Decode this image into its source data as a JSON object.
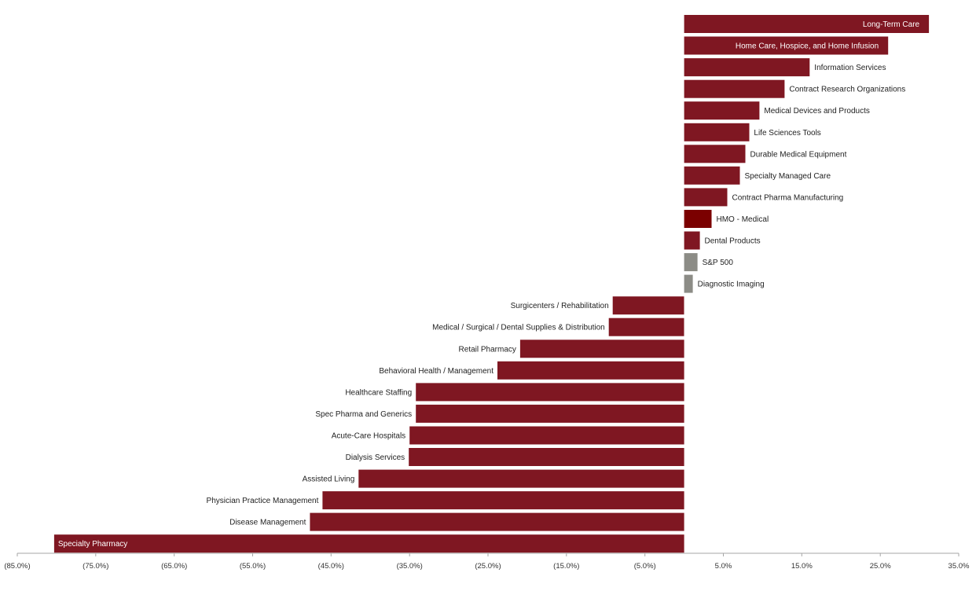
{
  "chart_data": {
    "type": "bar",
    "orientation": "horizontal",
    "xlim": [
      -85,
      35
    ],
    "x_ticks": [
      -85,
      -75,
      -65,
      -55,
      -45,
      -35,
      -25,
      -15,
      -5,
      5,
      15,
      25,
      35
    ],
    "x_tick_labels": [
      "(85.0%)",
      "(75.0%)",
      "(65.0%)",
      "(55.0%)",
      "(45.0%)",
      "(35.0%)",
      "(25.0%)",
      "(15.0%)",
      "(5.0%)",
      "5.0%",
      "15.0%",
      "25.0%",
      "35.0%"
    ],
    "grid": false,
    "legend": "none",
    "colors": {
      "default": "#7f1722",
      "highlight": "#7b0000",
      "benchmark": "#8c8c86"
    },
    "bars": [
      {
        "label": "Long-Term Care",
        "value": 31.2,
        "color": "default",
        "label_inside": true
      },
      {
        "label": "Home Care, Hospice, and Home Infusion",
        "value": 26.0,
        "color": "default",
        "label_inside": true
      },
      {
        "label": "Information Services",
        "value": 16.0,
        "color": "default"
      },
      {
        "label": "Contract Research Organizations",
        "value": 12.8,
        "color": "default"
      },
      {
        "label": "Medical Devices and Products",
        "value": 9.6,
        "color": "default"
      },
      {
        "label": "Life Sciences Tools",
        "value": 8.3,
        "color": "default"
      },
      {
        "label": "Durable Medical Equipment",
        "value": 7.8,
        "color": "default"
      },
      {
        "label": "Specialty Managed Care",
        "value": 7.1,
        "color": "default"
      },
      {
        "label": "Contract Pharma Manufacturing",
        "value": 5.5,
        "color": "default"
      },
      {
        "label": "HMO - Medical",
        "value": 3.5,
        "color": "highlight"
      },
      {
        "label": "Dental Products",
        "value": 2.0,
        "color": "default"
      },
      {
        "label": "S&P 500",
        "value": 1.7,
        "color": "benchmark"
      },
      {
        "label": "Diagnostic Imaging",
        "value": 1.1,
        "color": "benchmark"
      },
      {
        "label": "Surgicenters / Rehabilitation",
        "value": -9.1,
        "color": "default"
      },
      {
        "label": "Medical / Surgical / Dental Supplies & Distribution",
        "value": -9.6,
        "color": "default"
      },
      {
        "label": "Retail Pharmacy",
        "value": -20.9,
        "color": "default"
      },
      {
        "label": "Behavioral Health / Management",
        "value": -23.8,
        "color": "default"
      },
      {
        "label": "Healthcare Staffing",
        "value": -34.2,
        "color": "default"
      },
      {
        "label": "Spec Pharma and Generics",
        "value": -34.2,
        "color": "default"
      },
      {
        "label": "Acute-Care Hospitals",
        "value": -35.0,
        "color": "default"
      },
      {
        "label": "Dialysis Services",
        "value": -35.1,
        "color": "default"
      },
      {
        "label": "Assisted Living",
        "value": -41.5,
        "color": "default"
      },
      {
        "label": "Physician Practice Management",
        "value": -46.1,
        "color": "default"
      },
      {
        "label": "Disease Management",
        "value": -47.7,
        "color": "default"
      },
      {
        "label": "Specialty Pharmacy",
        "value": -80.3,
        "color": "default",
        "label_inside": true
      }
    ]
  }
}
